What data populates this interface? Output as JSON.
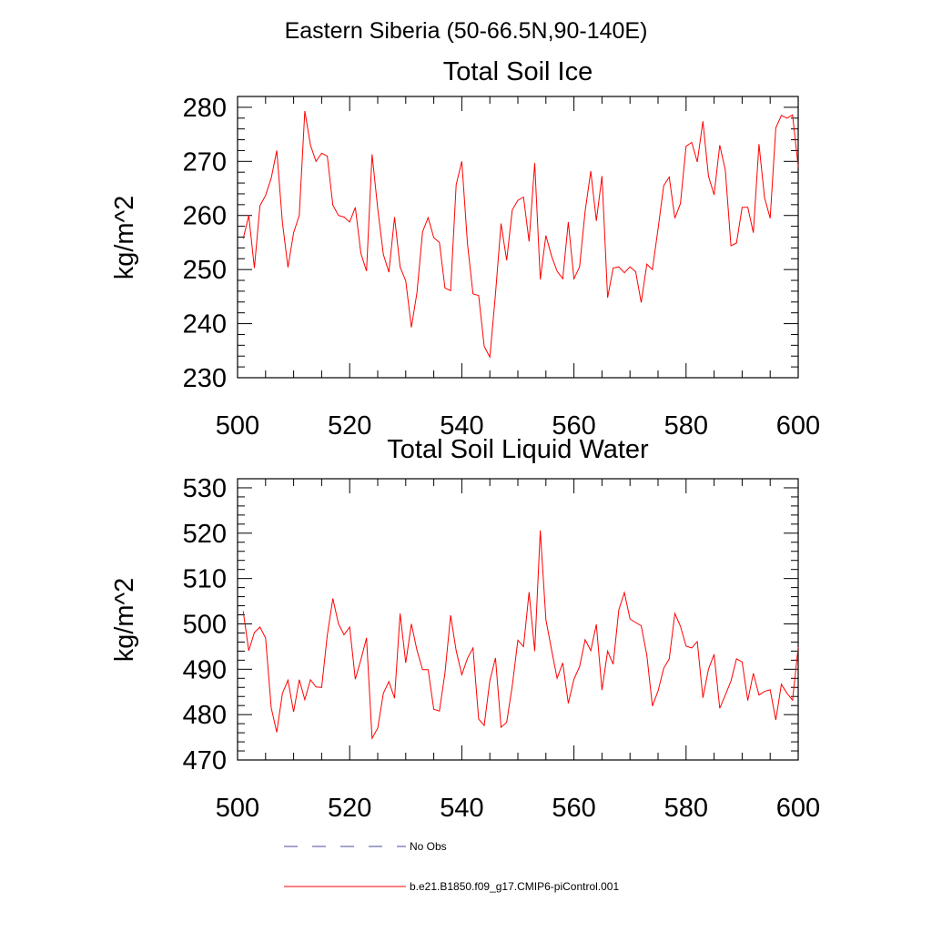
{
  "title": "Eastern Siberia (50-66.5N,90-140E)",
  "legend": [
    {
      "label": "No Obs",
      "style": "dashed",
      "color": "#4a4a9a"
    },
    {
      "label": "b.e21.B1850.f09_g17.CMIP6-piControl.001",
      "style": "solid",
      "color": "#ff0000"
    }
  ],
  "chart_data": [
    {
      "type": "line",
      "title": "Total Soil Ice",
      "xlabel": "",
      "ylabel": "kg/m^2",
      "xlim": [
        500,
        600
      ],
      "ylim": [
        230,
        282
      ],
      "xticks": [
        500,
        520,
        540,
        560,
        580,
        600
      ],
      "yticks": [
        230,
        240,
        250,
        260,
        270,
        280
      ],
      "series": [
        {
          "name": "b.e21.B1850.f09_g17.CMIP6-piControl.001",
          "color": "#ff0000",
          "x": [
            501,
            502,
            503,
            504,
            505,
            506,
            507,
            508,
            509,
            510,
            511,
            512,
            513,
            514,
            515,
            516,
            517,
            518,
            519,
            520,
            521,
            522,
            523,
            524,
            525,
            526,
            527,
            528,
            529,
            530,
            531,
            532,
            533,
            534,
            535,
            536,
            537,
            538,
            539,
            540,
            541,
            542,
            543,
            544,
            545,
            546,
            547,
            548,
            549,
            550,
            551,
            552,
            553,
            554,
            555,
            556,
            557,
            558,
            559,
            560,
            561,
            562,
            563,
            564,
            565,
            566,
            567,
            568,
            569,
            570,
            571,
            572,
            573,
            574,
            575,
            576,
            577,
            578,
            579,
            580,
            581,
            582,
            583,
            584,
            585,
            586,
            587,
            588,
            589,
            590,
            591,
            592,
            593,
            594,
            595,
            596,
            597,
            598,
            599,
            600
          ],
          "values": [
            255.7,
            260.0,
            250.3,
            261.8,
            263.7,
            266.9,
            272.0,
            258.7,
            250.4,
            256.8,
            260.0,
            279.3,
            273.0,
            270.0,
            271.5,
            271.0,
            261.9,
            260.0,
            259.7,
            258.8,
            261.5,
            253.0,
            249.7,
            271.3,
            261.3,
            252.8,
            249.5,
            259.7,
            250.5,
            247.9,
            239.3,
            245.7,
            257.0,
            259.6,
            255.9,
            255.0,
            246.6,
            246.1,
            265.7,
            270.0,
            254.8,
            245.5,
            245.2,
            235.8,
            233.8,
            245.5,
            258.5,
            251.7,
            261.0,
            262.8,
            263.4,
            255.2,
            269.7,
            248.2,
            256.3,
            252.5,
            249.7,
            248.3,
            258.8,
            248.3,
            250.5,
            260.8,
            268.2,
            259.0,
            267.3,
            244.8,
            250.3,
            250.5,
            249.4,
            250.5,
            249.6,
            243.9,
            251.0,
            250.0,
            257.5,
            265.5,
            267.1,
            259.5,
            262.2,
            272.8,
            273.5,
            269.9,
            277.4,
            267.3,
            263.8,
            273.0,
            268.4,
            254.4,
            254.9,
            261.5,
            261.5,
            256.8,
            273.2,
            263.3,
            259.5,
            276.2,
            278.5,
            278.0,
            278.6,
            269.0
          ]
        }
      ]
    },
    {
      "type": "line",
      "title": "Total Soil Liquid Water",
      "xlabel": "",
      "ylabel": "kg/m^2",
      "xlim": [
        500,
        600
      ],
      "ylim": [
        470,
        532
      ],
      "xticks": [
        500,
        520,
        540,
        560,
        580,
        600
      ],
      "yticks": [
        470,
        480,
        490,
        500,
        510,
        520,
        530
      ],
      "series": [
        {
          "name": "b.e21.B1850.f09_g17.CMIP6-piControl.001",
          "color": "#ff0000",
          "x": [
            501,
            502,
            503,
            504,
            505,
            506,
            507,
            508,
            509,
            510,
            511,
            512,
            513,
            514,
            515,
            516,
            517,
            518,
            519,
            520,
            521,
            522,
            523,
            524,
            525,
            526,
            527,
            528,
            529,
            530,
            531,
            532,
            533,
            534,
            535,
            536,
            537,
            538,
            539,
            540,
            541,
            542,
            543,
            544,
            545,
            546,
            547,
            548,
            549,
            550,
            551,
            552,
            553,
            554,
            555,
            556,
            557,
            558,
            559,
            560,
            561,
            562,
            563,
            564,
            565,
            566,
            567,
            568,
            569,
            570,
            571,
            572,
            573,
            574,
            575,
            576,
            577,
            578,
            579,
            580,
            581,
            582,
            583,
            584,
            585,
            586,
            587,
            588,
            589,
            590,
            591,
            592,
            593,
            594,
            595,
            596,
            597,
            598,
            599,
            600
          ],
          "values": [
            502.8,
            494.1,
            498.1,
            499.3,
            496.9,
            481.5,
            476.1,
            484.7,
            487.6,
            480.6,
            487.7,
            483.3,
            487.7,
            486.1,
            486.0,
            497.5,
            505.6,
            500.0,
            497.6,
            499.3,
            487.8,
            492.1,
            496.9,
            474.8,
            477.0,
            484.7,
            487.3,
            483.6,
            502.3,
            491.4,
            500.0,
            494.2,
            489.9,
            489.9,
            481.2,
            480.8,
            489.2,
            501.9,
            494.1,
            488.8,
            492.4,
            494.7,
            479.0,
            477.6,
            487.5,
            492.5,
            477.2,
            478.3,
            486.3,
            496.4,
            495.0,
            507.0,
            494.0,
            520.6,
            500.9,
            494.3,
            488.0,
            491.4,
            482.5,
            487.8,
            490.6,
            496.5,
            494.1,
            499.9,
            485.4,
            494.0,
            491.1,
            503.1,
            506.9,
            501.1,
            500.3,
            499.6,
            493.1,
            481.9,
            485.2,
            490.2,
            492.3,
            502.3,
            499.5,
            495.1,
            494.7,
            496.1,
            483.7,
            490.0,
            493.3,
            481.4,
            484.3,
            487.4,
            492.3,
            491.6,
            483.1,
            489.1,
            484.3,
            485.1,
            485.5,
            478.8,
            486.7,
            484.7,
            483.2,
            494.9
          ]
        }
      ]
    }
  ]
}
